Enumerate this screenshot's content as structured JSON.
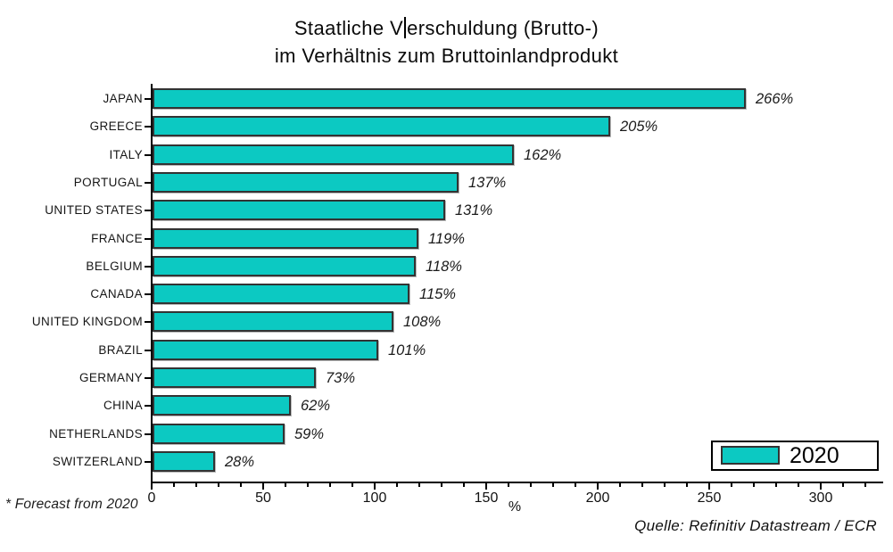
{
  "title": {
    "line1_pre_cursor": "Staatliche V",
    "line1_post_cursor": "erschuldung (Brutto-)",
    "line1": "Staatliche Verschuldung (Brutto-)",
    "line2": "im Verhältnis zum Bruttoinlandprodukt"
  },
  "chart_data": {
    "type": "bar",
    "orientation": "horizontal",
    "title": "Staatliche Verschuldung (Brutto-) im Verhältnis zum Bruttoinlandprodukt",
    "categories": [
      "JAPAN",
      "GREECE",
      "ITALY",
      "PORTUGAL",
      "UNITED STATES",
      "FRANCE",
      "BELGIUM",
      "CANADA",
      "UNITED KINGDOM",
      "BRAZIL",
      "GERMANY",
      "CHINA",
      "NETHERLANDS",
      "SWITZERLAND"
    ],
    "values": [
      266,
      205,
      162,
      137,
      131,
      119,
      118,
      115,
      108,
      101,
      73,
      62,
      59,
      28
    ],
    "value_labels": [
      "266%",
      "205%",
      "162%",
      "137%",
      "131%",
      "119%",
      "118%",
      "115%",
      "108%",
      "101%",
      "73%",
      "62%",
      "59%",
      "28%"
    ],
    "xlabel": "%",
    "ylabel": "",
    "xlim": [
      0,
      328
    ],
    "x_major_ticks": [
      0,
      50,
      100,
      150,
      200,
      250,
      300
    ],
    "x_minor_tick_step": 10,
    "grid": false,
    "bar_color": "#0cc9c2",
    "bar_border_color": "#333333",
    "legend": {
      "label": "2020",
      "position": "bottom-right",
      "swatch_color": "#0cc9c2"
    }
  },
  "footnote": "* Forecast from 2020",
  "source": "Quelle: Refinitiv Datastream / ECR"
}
